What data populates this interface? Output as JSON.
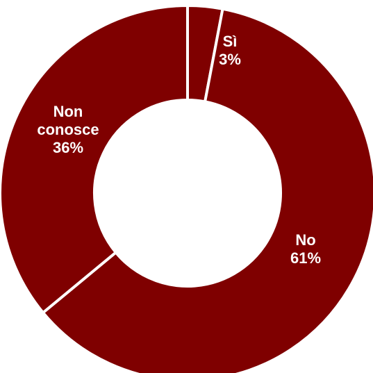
{
  "chart_data": {
    "type": "pie",
    "donut": true,
    "slices": [
      {
        "label_lines": [
          "Sì"
        ],
        "percent_label": "3%",
        "value": 3
      },
      {
        "label_lines": [
          "No"
        ],
        "percent_label": "61%",
        "value": 61
      },
      {
        "label_lines": [
          "Non",
          "conosce"
        ],
        "percent_label": "36%",
        "value": 36
      }
    ],
    "colors": {
      "slice": "#7f0000",
      "separator": "#ffffff",
      "label": "#ffffff",
      "background": "#ffffff"
    },
    "legend": "none"
  }
}
